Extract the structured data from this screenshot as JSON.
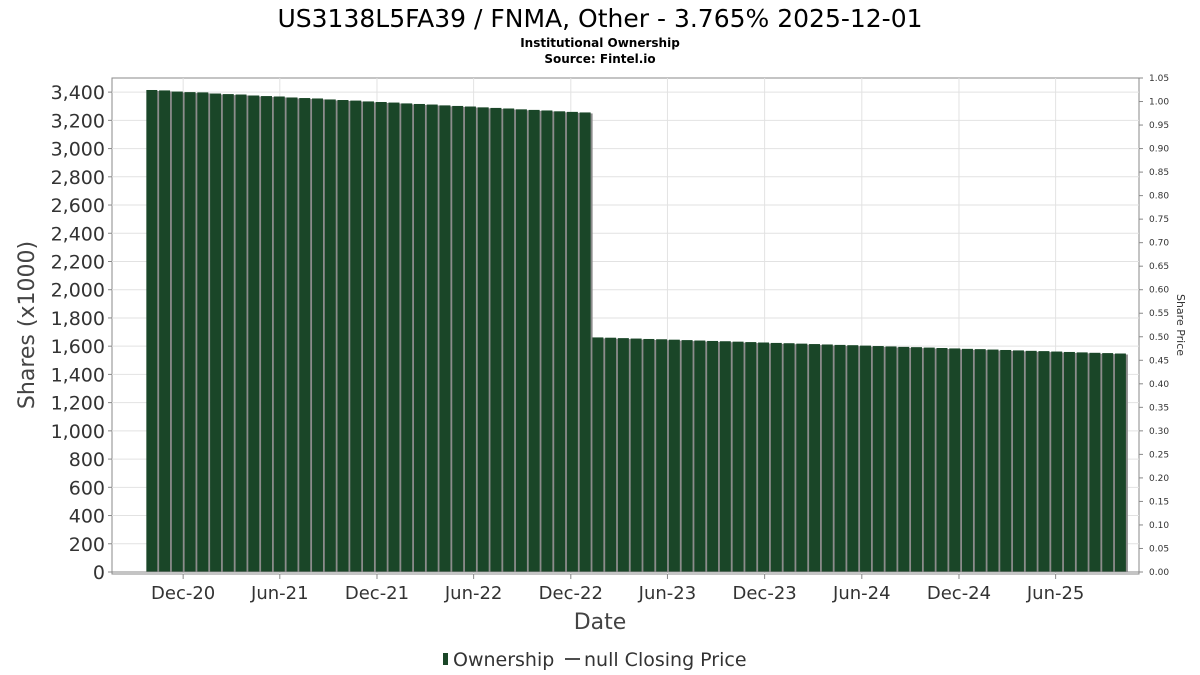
{
  "chart_data": {
    "type": "bar",
    "title": "US3138L5FA39 / FNMA, Other - 3.765% 2025-12-01",
    "subtitle_lines": [
      "Institutional Ownership",
      "Source: Fintel.io"
    ],
    "xlabel": "Date",
    "ylabel": "Shares (x1000)",
    "y2label": "Share Price",
    "ylim": [
      0,
      3500
    ],
    "y_ticks": [
      0,
      200,
      400,
      600,
      800,
      1000,
      1200,
      1400,
      1600,
      1800,
      2000,
      2200,
      2400,
      2600,
      2800,
      3000,
      3200,
      3400
    ],
    "y_tick_labels": [
      "0",
      "200",
      "400",
      "600",
      "800",
      "1,000",
      "1,200",
      "1,400",
      "1,600",
      "1,800",
      "2,000",
      "2,200",
      "2,400",
      "2,600",
      "2,800",
      "3,000",
      "3,200",
      "3,400"
    ],
    "y2lim": [
      0,
      1.05
    ],
    "y2_tick_labels": [
      "0.00",
      "0.05",
      "0.10",
      "0.15",
      "0.20",
      "0.25",
      "0.30",
      "0.35",
      "0.40",
      "0.45",
      "0.50",
      "0.55",
      "0.60",
      "0.65",
      "0.70",
      "0.75",
      "0.80",
      "0.85",
      "0.90",
      "0.95",
      "1.00",
      "1.05"
    ],
    "x_range": [
      "2020-07-20",
      "2025-11-05"
    ],
    "x_ticks": [
      {
        "label": "Dec-20",
        "date": "2020-12-01"
      },
      {
        "label": "Jun-21",
        "date": "2021-06-01"
      },
      {
        "label": "Dec-21",
        "date": "2021-12-01"
      },
      {
        "label": "Jun-22",
        "date": "2022-06-01"
      },
      {
        "label": "Dec-22",
        "date": "2022-12-01"
      },
      {
        "label": "Jun-23",
        "date": "2023-06-01"
      },
      {
        "label": "Dec-23",
        "date": "2023-12-01"
      },
      {
        "label": "Jun-24",
        "date": "2024-06-01"
      },
      {
        "label": "Dec-24",
        "date": "2024-12-01"
      },
      {
        "label": "Jun-25",
        "date": "2025-06-01"
      }
    ],
    "grid": true,
    "legend_position": "bottom",
    "series": [
      {
        "name": "Ownership",
        "color": "#1a4628",
        "dates": [
          "2020-10-03",
          "2020-10-27",
          "2020-11-20",
          "2020-12-14",
          "2021-01-07",
          "2021-01-31",
          "2021-02-24",
          "2021-03-20",
          "2021-04-13",
          "2021-05-07",
          "2021-05-31",
          "2021-06-24",
          "2021-07-18",
          "2021-08-11",
          "2021-09-04",
          "2021-09-28",
          "2021-10-22",
          "2021-11-15",
          "2021-12-09",
          "2022-01-02",
          "2022-01-26",
          "2022-02-19",
          "2022-03-15",
          "2022-04-08",
          "2022-05-02",
          "2022-05-26",
          "2022-06-19",
          "2022-07-13",
          "2022-08-06",
          "2022-08-30",
          "2022-09-23",
          "2022-10-17",
          "2022-11-10",
          "2022-12-04",
          "2022-12-28",
          "2023-01-21",
          "2023-02-14",
          "2023-03-10",
          "2023-04-03",
          "2023-04-27",
          "2023-05-21",
          "2023-06-14",
          "2023-07-08",
          "2023-08-01",
          "2023-08-25",
          "2023-09-18",
          "2023-10-12",
          "2023-11-05",
          "2023-11-29",
          "2023-12-23",
          "2024-01-16",
          "2024-02-09",
          "2024-03-04",
          "2024-03-28",
          "2024-04-21",
          "2024-05-15",
          "2024-06-08",
          "2024-07-02",
          "2024-07-26",
          "2024-08-19",
          "2024-09-12",
          "2024-10-06",
          "2024-10-30",
          "2024-11-23",
          "2024-12-17",
          "2025-01-10",
          "2025-02-03",
          "2025-02-27",
          "2025-03-23",
          "2025-04-16",
          "2025-05-10",
          "2025-06-03",
          "2025-06-27",
          "2025-07-21",
          "2025-08-14",
          "2025-09-07",
          "2025-10-01"
        ],
        "values": [
          3415,
          3412,
          3404,
          3400,
          3398,
          3390,
          3386,
          3383,
          3376,
          3372,
          3369,
          3362,
          3358,
          3355,
          3348,
          3344,
          3340,
          3334,
          3330,
          3326,
          3320,
          3316,
          3312,
          3306,
          3302,
          3298,
          3292,
          3288,
          3284,
          3278,
          3274,
          3270,
          3264,
          3260,
          3256,
          1662,
          1660,
          1657,
          1654,
          1651,
          1649,
          1646,
          1643,
          1640,
          1637,
          1635,
          1632,
          1629,
          1626,
          1623,
          1621,
          1618,
          1615,
          1612,
          1609,
          1607,
          1604,
          1601,
          1598,
          1595,
          1593,
          1590,
          1587,
          1584,
          1581,
          1579,
          1576,
          1573,
          1570,
          1567,
          1565,
          1562,
          1559,
          1556,
          1553,
          1551,
          1548
        ]
      },
      {
        "name": "null Closing Price",
        "color": "#4d4d4d",
        "values": []
      }
    ]
  }
}
